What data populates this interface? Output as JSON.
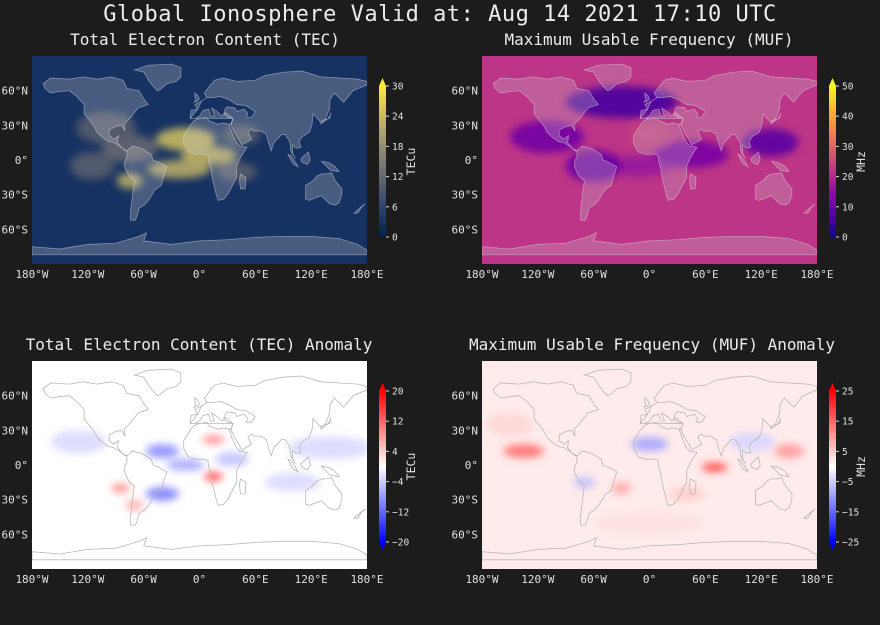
{
  "figure": {
    "title": "Global Ionosphere Valid at: Aug 14 2021 17:10 UTC"
  },
  "colors": {
    "background": "#1c1c1c",
    "text": "#e8e8e8",
    "coastline": "#c8c8c8"
  },
  "chart_data": [
    {
      "id": "tec",
      "type": "heatmap",
      "title": "Total Electron Content (TEC)",
      "colormap": "cividis",
      "colorbar_label": "TECu",
      "colorbar_ticks": [
        "0",
        "6",
        "12",
        "18",
        "24",
        "30"
      ],
      "colorbar_range": [
        0,
        30
      ],
      "extend": "max",
      "xticks": [
        "180°W",
        "120°W",
        "60°W",
        "0°",
        "60°E",
        "120°E",
        "180°E"
      ],
      "yticks": [
        "60°N",
        "30°N",
        "0°",
        "30°S",
        "60°S"
      ],
      "xlim": [
        -180,
        180
      ],
      "ylim": [
        -90,
        90
      ],
      "features": [
        {
          "lon": -15,
          "lat": 18,
          "sx": 32,
          "sy": 10,
          "value": 24
        },
        {
          "lon": -22,
          "lat": -8,
          "sx": 34,
          "sy": 8,
          "value": 22
        },
        {
          "lon": 10,
          "lat": 4,
          "sx": 30,
          "sy": 8,
          "value": 23
        },
        {
          "lon": -75,
          "lat": 10,
          "sx": 30,
          "sy": 12,
          "value": 12
        },
        {
          "lon": -100,
          "lat": 28,
          "sx": 32,
          "sy": 14,
          "value": 10
        },
        {
          "lon": -75,
          "lat": -18,
          "sx": 14,
          "sy": 7,
          "value": 22
        },
        {
          "lon": -115,
          "lat": -5,
          "sx": 24,
          "sy": 12,
          "value": 10
        },
        {
          "lon": 45,
          "lat": 22,
          "sx": 20,
          "sy": 9,
          "value": 10
        },
        {
          "lon": 40,
          "lat": -10,
          "sx": 22,
          "sy": 8,
          "value": 10
        }
      ],
      "base_value": 3
    },
    {
      "id": "muf",
      "type": "heatmap",
      "title": "Maximum Usable Frequency (MUF)",
      "colormap": "plasma",
      "colorbar_label": "MHz",
      "colorbar_ticks": [
        "0",
        "10",
        "20",
        "30",
        "40",
        "50"
      ],
      "colorbar_range": [
        0,
        50
      ],
      "extend": "max",
      "xticks": [
        "180°W",
        "120°W",
        "60°W",
        "0°",
        "60°E",
        "120°E",
        "180°E"
      ],
      "yticks": [
        "60°N",
        "30°N",
        "0°",
        "30°S",
        "60°S"
      ],
      "xlim": [
        -180,
        180
      ],
      "ylim": [
        -90,
        90
      ],
      "features": [
        {
          "lon": 0,
          "lat": 22,
          "sx": 24,
          "sy": 10,
          "value": 24
        },
        {
          "lon": -10,
          "lat": -5,
          "sx": 36,
          "sy": 9,
          "value": 16
        },
        {
          "lon": 45,
          "lat": 5,
          "sx": 40,
          "sy": 12,
          "value": 12
        },
        {
          "lon": -110,
          "lat": 20,
          "sx": 40,
          "sy": 14,
          "value": 11
        },
        {
          "lon": -60,
          "lat": -5,
          "sx": 30,
          "sy": 14,
          "value": 10
        },
        {
          "lon": 130,
          "lat": 15,
          "sx": 30,
          "sy": 12,
          "value": 8
        },
        {
          "lon": -30,
          "lat": 50,
          "sx": 60,
          "sy": 14,
          "value": 6
        }
      ],
      "base_value": 22
    },
    {
      "id": "tec-anomaly",
      "type": "heatmap",
      "title": "Total Electron Content (TEC) Anomaly",
      "colormap": "bwr",
      "colorbar_label": "TECu",
      "colorbar_ticks": [
        "−20",
        "−12",
        "−4",
        "4",
        "12",
        "20"
      ],
      "colorbar_range": [
        -20,
        20
      ],
      "extend": "both",
      "xticks": [
        "180°W",
        "120°W",
        "60°W",
        "0°",
        "60°E",
        "120°E",
        "180°E"
      ],
      "yticks": [
        "60°N",
        "30°N",
        "0°",
        "30°S",
        "60°S"
      ],
      "xlim": [
        -180,
        180
      ],
      "ylim": [
        -90,
        90
      ],
      "features": [
        {
          "lon": -40,
          "lat": 12,
          "sx": 18,
          "sy": 6,
          "value": -9
        },
        {
          "lon": 15,
          "lat": 22,
          "sx": 12,
          "sy": 4,
          "value": 9
        },
        {
          "lon": 15,
          "lat": -10,
          "sx": 10,
          "sy": 4,
          "value": 14
        },
        {
          "lon": -85,
          "lat": -20,
          "sx": 10,
          "sy": 4,
          "value": 9
        },
        {
          "lon": -40,
          "lat": -25,
          "sx": 18,
          "sy": 6,
          "value": -10
        },
        {
          "lon": -15,
          "lat": 0,
          "sx": 20,
          "sy": 5,
          "value": -7
        },
        {
          "lon": 35,
          "lat": 5,
          "sx": 18,
          "sy": 6,
          "value": -5
        },
        {
          "lon": 140,
          "lat": 15,
          "sx": 45,
          "sy": 10,
          "value": -3
        },
        {
          "lon": -130,
          "lat": 20,
          "sx": 30,
          "sy": 10,
          "value": -3
        },
        {
          "lon": -70,
          "lat": -35,
          "sx": 10,
          "sy": 5,
          "value": 6
        },
        {
          "lon": 100,
          "lat": -15,
          "sx": 30,
          "sy": 8,
          "value": -3
        }
      ],
      "base_value": 0
    },
    {
      "id": "muf-anomaly",
      "type": "heatmap",
      "title": "Maximum Usable Frequency (MUF) Anomaly",
      "colormap": "bwr",
      "colorbar_label": "MHz",
      "colorbar_ticks": [
        "−25",
        "−15",
        "−5",
        "5",
        "15",
        "25"
      ],
      "colorbar_range": [
        -25,
        25
      ],
      "extend": "both",
      "xticks": [
        "180°W",
        "120°W",
        "60°W",
        "0°",
        "60°E",
        "120°E",
        "180°E"
      ],
      "yticks": [
        "60°N",
        "30°N",
        "0°",
        "30°S",
        "60°S"
      ],
      "xlim": [
        -180,
        180
      ],
      "ylim": [
        -90,
        90
      ],
      "features": [
        {
          "lon": -135,
          "lat": 12,
          "sx": 22,
          "sy": 6,
          "value": 14
        },
        {
          "lon": 70,
          "lat": -2,
          "sx": 14,
          "sy": 4,
          "value": 18
        },
        {
          "lon": 0,
          "lat": 18,
          "sx": 20,
          "sy": 6,
          "value": -9
        },
        {
          "lon": -30,
          "lat": -20,
          "sx": 10,
          "sy": 5,
          "value": 9
        },
        {
          "lon": 150,
          "lat": 12,
          "sx": 16,
          "sy": 6,
          "value": 10
        },
        {
          "lon": -70,
          "lat": -15,
          "sx": 12,
          "sy": 5,
          "value": -6
        },
        {
          "lon": 40,
          "lat": -25,
          "sx": 20,
          "sy": 6,
          "value": 5
        },
        {
          "lon": 110,
          "lat": 20,
          "sx": 25,
          "sy": 8,
          "value": -4
        },
        {
          "lon": -150,
          "lat": 35,
          "sx": 25,
          "sy": 10,
          "value": 4
        },
        {
          "lon": 0,
          "lat": -50,
          "sx": 60,
          "sy": 10,
          "value": 3
        }
      ],
      "base_value": 2
    }
  ]
}
